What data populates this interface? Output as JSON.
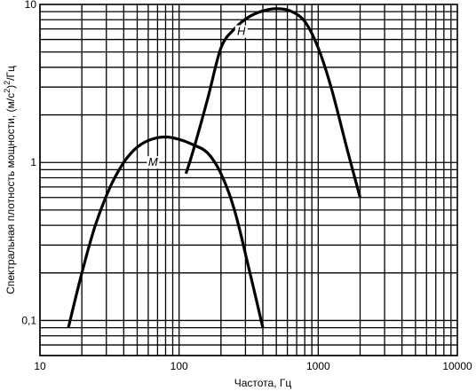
{
  "chart_data": {
    "type": "line",
    "xlabel": "Частота, Гц",
    "ylabel_prefix": "Спектральная плотность мощности, (м/с",
    "ylabel_sup": "2",
    "ylabel_suffix": ")",
    "ylabel_sup2": "2",
    "ylabel_end": "/Гц",
    "x_scale": "log",
    "y_scale": "log",
    "xlim": [
      10,
      10000
    ],
    "ylim": [
      0.06,
      10
    ],
    "grid": true,
    "x_ticks": [
      {
        "value": 10,
        "label": "10"
      },
      {
        "value": 100,
        "label": "100"
      },
      {
        "value": 1000,
        "label": "1000"
      },
      {
        "value": 10000,
        "label": "10000"
      }
    ],
    "y_ticks": [
      {
        "value": 0.1,
        "label": "0,1"
      },
      {
        "value": 1,
        "label": "1"
      },
      {
        "value": 10,
        "label": "10"
      }
    ],
    "series": [
      {
        "name": "М",
        "label_at": {
          "x": 65,
          "y": 0.95
        },
        "points": [
          {
            "x": 16,
            "y": 0.09
          },
          {
            "x": 20,
            "y": 0.2
          },
          {
            "x": 25,
            "y": 0.4
          },
          {
            "x": 32,
            "y": 0.7
          },
          {
            "x": 40,
            "y": 1.0
          },
          {
            "x": 50,
            "y": 1.25
          },
          {
            "x": 63,
            "y": 1.4
          },
          {
            "x": 80,
            "y": 1.45
          },
          {
            "x": 100,
            "y": 1.4
          },
          {
            "x": 125,
            "y": 1.3
          },
          {
            "x": 160,
            "y": 1.15
          },
          {
            "x": 200,
            "y": 0.85
          },
          {
            "x": 250,
            "y": 0.5
          },
          {
            "x": 315,
            "y": 0.22
          },
          {
            "x": 400,
            "y": 0.09
          }
        ]
      },
      {
        "name": "Н",
        "label_at": {
          "x": 280,
          "y": 6.4
        },
        "points": [
          {
            "x": 112,
            "y": 0.85
          },
          {
            "x": 125,
            "y": 1.15
          },
          {
            "x": 160,
            "y": 2.5
          },
          {
            "x": 200,
            "y": 5.3
          },
          {
            "x": 250,
            "y": 7.0
          },
          {
            "x": 315,
            "y": 8.3
          },
          {
            "x": 400,
            "y": 9.1
          },
          {
            "x": 500,
            "y": 9.4
          },
          {
            "x": 630,
            "y": 9.1
          },
          {
            "x": 800,
            "y": 7.8
          },
          {
            "x": 1000,
            "y": 5.3
          },
          {
            "x": 1250,
            "y": 2.9
          },
          {
            "x": 1600,
            "y": 1.25
          },
          {
            "x": 2000,
            "y": 0.6
          }
        ]
      }
    ]
  }
}
